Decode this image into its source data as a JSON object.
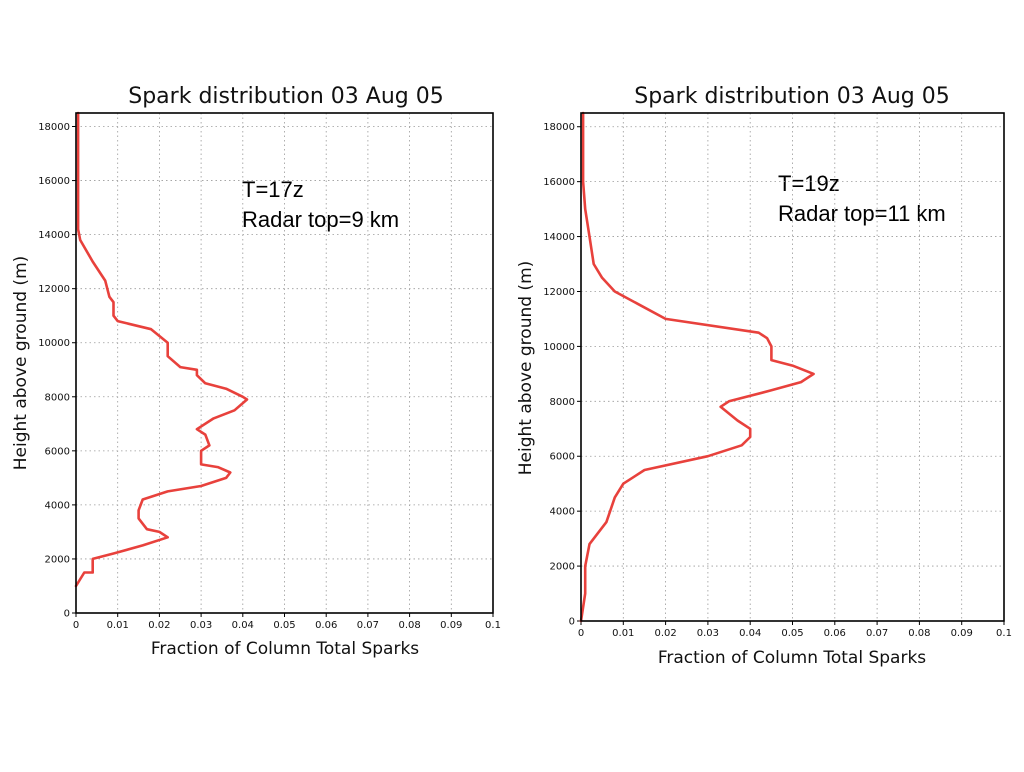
{
  "chart_data": [
    {
      "type": "line",
      "title": "Spark distribution 03 Aug 05",
      "xlabel": "Fraction of Column Total Sparks",
      "ylabel": "Height above ground (m)",
      "xlim": [
        0,
        0.1
      ],
      "ylim": [
        0,
        18500
      ],
      "xticks": [
        0,
        0.01,
        0.02,
        0.03,
        0.04,
        0.05,
        0.06,
        0.07,
        0.08,
        0.09,
        0.1
      ],
      "xtick_labels": [
        "0",
        "0.01",
        "0.02",
        "0.03",
        "0.04",
        "0.05",
        "0.06",
        "0.07",
        "0.08",
        "0.09",
        "0.1"
      ],
      "yticks": [
        0,
        2000,
        4000,
        6000,
        8000,
        10000,
        12000,
        14000,
        16000,
        18000
      ],
      "ytick_labels": [
        "0",
        "2000",
        "4000",
        "6000",
        "8000",
        "10000",
        "12000",
        "14000",
        "16000",
        "18000"
      ],
      "grid": true,
      "line_color": "#e8413c",
      "annotations": [
        "T=17z",
        "Radar top=9 km"
      ],
      "series": [
        {
          "x": [
            0.0,
            0.002,
            0.004,
            0.004,
            0.009,
            0.016,
            0.022,
            0.02,
            0.017,
            0.015,
            0.015,
            0.016,
            0.022,
            0.03,
            0.036,
            0.037,
            0.034,
            0.03,
            0.03,
            0.032,
            0.031,
            0.029,
            0.033,
            0.038,
            0.041,
            0.04,
            0.036,
            0.031,
            0.029,
            0.029,
            0.025,
            0.022,
            0.022,
            0.018,
            0.01,
            0.009,
            0.009,
            0.008,
            0.007,
            0.004,
            0.001,
            0.0005,
            0.0005,
            0.0005,
            0.0005,
            0.0005
          ],
          "y": [
            1000,
            1500,
            1500,
            2000,
            2200,
            2500,
            2800,
            3000,
            3100,
            3500,
            3800,
            4200,
            4500,
            4700,
            5000,
            5200,
            5400,
            5500,
            6000,
            6200,
            6600,
            6800,
            7200,
            7500,
            7900,
            8000,
            8300,
            8500,
            8800,
            9000,
            9100,
            9500,
            10000,
            10500,
            10800,
            11000,
            11500,
            11700,
            12300,
            13000,
            13800,
            14200,
            15000,
            16000,
            17000,
            18500
          ]
        }
      ]
    },
    {
      "type": "line",
      "title": "Spark distribution 03 Aug 05",
      "xlabel": "Fraction of Column Total Sparks",
      "ylabel": "Height above ground (m)",
      "xlim": [
        0,
        0.1
      ],
      "ylim": [
        0,
        18500
      ],
      "xticks": [
        0,
        0.01,
        0.02,
        0.03,
        0.04,
        0.05,
        0.06,
        0.07,
        0.08,
        0.09,
        0.1
      ],
      "xtick_labels": [
        "0",
        "0.01",
        "0.02",
        "0.03",
        "0.04",
        "0.05",
        "0.06",
        "0.07",
        "0.08",
        "0.09",
        "0.1"
      ],
      "yticks": [
        0,
        2000,
        4000,
        6000,
        8000,
        10000,
        12000,
        14000,
        16000,
        18000
      ],
      "ytick_labels": [
        "0",
        "2000",
        "4000",
        "6000",
        "8000",
        "10000",
        "12000",
        "14000",
        "16000",
        "18000"
      ],
      "grid": true,
      "line_color": "#e8413c",
      "annotations": [
        "T=19z",
        "Radar top=11 km"
      ],
      "series": [
        {
          "x": [
            0.0,
            0.001,
            0.001,
            0.002,
            0.006,
            0.008,
            0.01,
            0.015,
            0.03,
            0.038,
            0.04,
            0.04,
            0.037,
            0.033,
            0.035,
            0.045,
            0.052,
            0.055,
            0.05,
            0.045,
            0.045,
            0.044,
            0.042,
            0.02,
            0.014,
            0.008,
            0.005,
            0.003,
            0.002,
            0.001,
            0.0005,
            0.0005,
            0.0005
          ],
          "y": [
            0,
            1000,
            2000,
            2800,
            3600,
            4500,
            5000,
            5500,
            6000,
            6400,
            6700,
            7000,
            7300,
            7800,
            8000,
            8400,
            8700,
            9000,
            9300,
            9500,
            10000,
            10300,
            10500,
            11000,
            11500,
            12000,
            12500,
            13000,
            14000,
            15000,
            16000,
            17000,
            18500
          ]
        }
      ]
    }
  ]
}
